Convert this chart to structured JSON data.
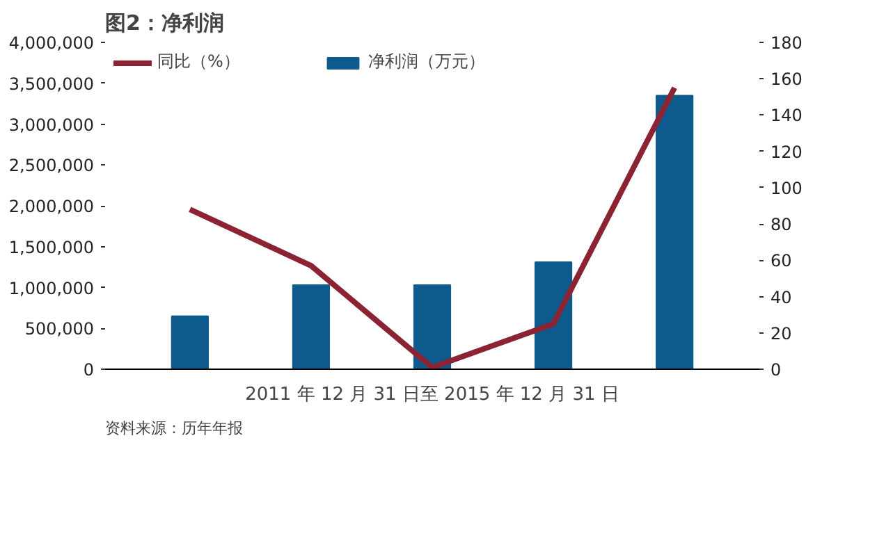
{
  "chart_data": {
    "type": "bar",
    "title": "图2：净利润",
    "xlabel": "2011 年 12 月 31 日至 2015 年 12 月 31 日",
    "categories": [
      null,
      null,
      null,
      null,
      null
    ],
    "series": [
      {
        "name": "同比（%）",
        "type": "line",
        "axis": "y2",
        "color": "#8b2332",
        "values": [
          88,
          57,
          1,
          25,
          155
        ]
      },
      {
        "name": "净利润（万元）",
        "color": "#0f5a8c",
        "values": [
          650000,
          1030000,
          1030000,
          1310000,
          3350000
        ]
      }
    ],
    "ylim": [
      0,
      4000000
    ],
    "yticks": [
      {
        "value": 0,
        "label": "0"
      },
      {
        "value": 500000,
        "label": "500,000"
      },
      {
        "value": 1000000,
        "label": "1,000,000"
      },
      {
        "value": 1500000,
        "label": "1,500,000"
      },
      {
        "value": 2000000,
        "label": "2,000,000"
      },
      {
        "value": 2500000,
        "label": "2,500,000"
      },
      {
        "value": 3000000,
        "label": "3,000,000"
      },
      {
        "value": 3500000,
        "label": "3,500,000"
      },
      {
        "value": 4000000,
        "label": "4,000,000"
      }
    ],
    "y2lim": [
      0,
      180
    ],
    "y2ticks": [
      0,
      20,
      40,
      60,
      80,
      100,
      120,
      140,
      160,
      180
    ],
    "legend": "top left",
    "grid": false,
    "line_style": "solid",
    "marker": "none",
    "annotations": [
      "资料来源：历年年报"
    ]
  }
}
